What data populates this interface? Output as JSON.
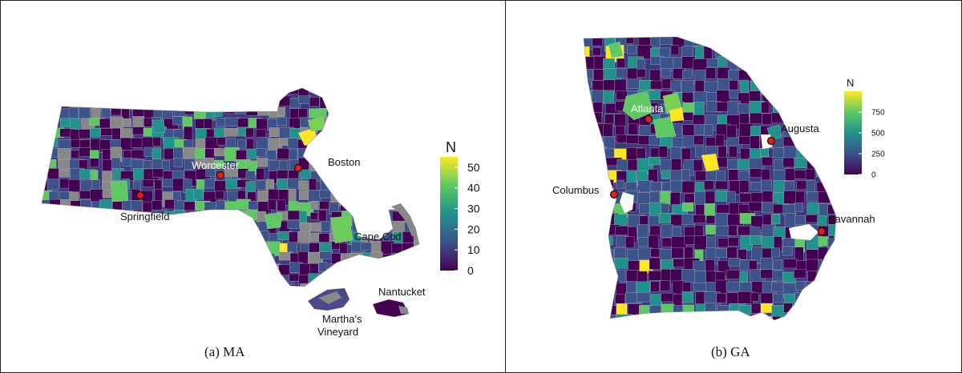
{
  "panels": [
    {
      "id": "ma",
      "caption": "(a)  MA",
      "legend": {
        "title": "N",
        "min": 0,
        "max": 55,
        "ticks": [
          0,
          10,
          20,
          30,
          40,
          50
        ]
      },
      "cities": [
        {
          "name": "Boston"
        },
        {
          "name": "Worcester"
        },
        {
          "name": "Springfield"
        },
        {
          "name": "Cape Cod"
        },
        {
          "name": "Nantucket"
        },
        {
          "name": "Martha's Vineyard"
        }
      ]
    },
    {
      "id": "ga",
      "caption": "(b)  GA",
      "legend": {
        "title": "N",
        "min": 0,
        "max": 1000,
        "ticks": [
          0,
          250,
          500,
          750
        ]
      },
      "cities": [
        {
          "name": "Atlanta"
        },
        {
          "name": "Augusta"
        },
        {
          "name": "Columbus"
        },
        {
          "name": "Savannah"
        }
      ]
    }
  ],
  "colors": {
    "viridis": [
      "#440154",
      "#3b528b",
      "#21918c",
      "#5ec962",
      "#fde725"
    ],
    "missing": "#888888",
    "city_marker": "#e41a1c",
    "boundary": "#bdbdbd"
  }
}
